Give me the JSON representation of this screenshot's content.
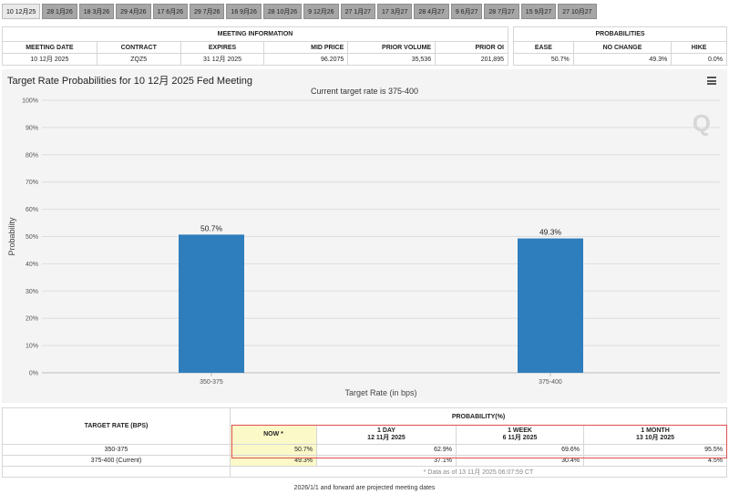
{
  "tabs": [
    "10 12月25",
    "28 1月26",
    "18 3月26",
    "29 4月26",
    "17 6月26",
    "29 7月26",
    "16 9月26",
    "28 10月26",
    "9 12月26",
    "27 1月27",
    "17 3月27",
    "28 4月27",
    "9 6月27",
    "28 7月27",
    "15 9月27",
    "27 10月27"
  ],
  "meeting_info": {
    "title": "MEETING INFORMATION",
    "headers": [
      "MEETING DATE",
      "CONTRACT",
      "EXPIRES",
      "MID PRICE",
      "PRIOR VOLUME",
      "PRIOR OI"
    ],
    "row": [
      "10 12月 2025",
      "ZQZ5",
      "31 12月 2025",
      "96.2075",
      "35,536",
      "201,895"
    ]
  },
  "probabilities": {
    "title": "PROBABILITIES",
    "headers": [
      "EASE",
      "NO CHANGE",
      "HIKE"
    ],
    "row": [
      "50.7%",
      "49.3%",
      "0.0%"
    ]
  },
  "chart_header": {
    "title": "Target Rate Probabilities for 10 12月 2025 Fed Meeting",
    "subtitle": "Current target rate is 375-400"
  },
  "logo_text": "Q",
  "chart_data": {
    "type": "bar",
    "title": "Target Rate Probabilities for 10 12月 2025 Fed Meeting",
    "subtitle": "Current target rate is 375-400",
    "categories": [
      "350-375",
      "375-400"
    ],
    "values": [
      50.7,
      49.3
    ],
    "value_labels": [
      "50.7%",
      "49.3%"
    ],
    "xlabel": "Target Rate (in bps)",
    "ylabel": "Probability",
    "ylim": [
      0,
      100
    ],
    "yticks": [
      "0%",
      "10%",
      "20%",
      "30%",
      "40%",
      "50%",
      "60%",
      "70%",
      "80%",
      "90%",
      "100%"
    ],
    "grid": true,
    "bar_color": "#2e7ebd"
  },
  "bottom_table": {
    "rate_header": "TARGET RATE (BPS)",
    "prob_header": "PROBABILITY(%)",
    "col_now": "NOW *",
    "col_1day": "1 DAY",
    "col_1day_date": "12 11月 2025",
    "col_1week": "1 WEEK",
    "col_1week_date": "6 11月 2025",
    "col_1month": "1 MONTH",
    "col_1month_date": "13 10月 2025",
    "rows": [
      {
        "rate": "350-375",
        "now": "50.7%",
        "day": "62.9%",
        "week": "69.6%",
        "month": "95.5%"
      },
      {
        "rate": "375-400 (Current)",
        "now": "49.3%",
        "day": "37.1%",
        "week": "30.4%",
        "month": "4.5%"
      }
    ],
    "note": "* Data as of 13 11月 2025 06:07:59 CT"
  },
  "footer": "2026/1/1 and forward are projected meeting dates",
  "colors": {
    "highlight_box": "#e05050",
    "now_bg": "#fbf9c8",
    "tab_bg": "#a6a6a6"
  }
}
